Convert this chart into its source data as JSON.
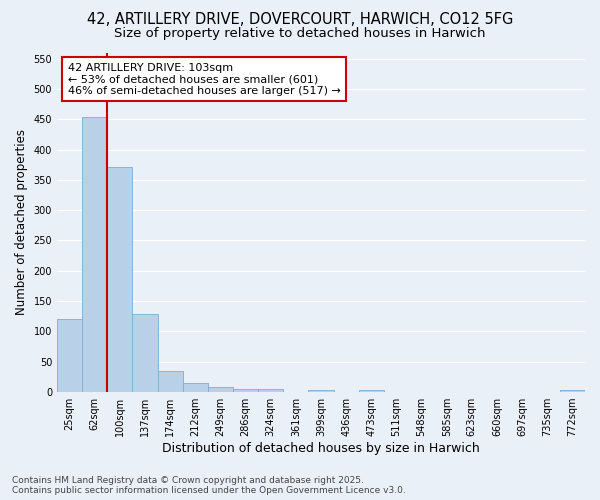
{
  "title_line1": "42, ARTILLERY DRIVE, DOVERCOURT, HARWICH, CO12 5FG",
  "title_line2": "Size of property relative to detached houses in Harwich",
  "xlabel": "Distribution of detached houses by size in Harwich",
  "ylabel": "Number of detached properties",
  "categories": [
    "25sqm",
    "62sqm",
    "100sqm",
    "137sqm",
    "174sqm",
    "212sqm",
    "249sqm",
    "286sqm",
    "324sqm",
    "361sqm",
    "399sqm",
    "436sqm",
    "473sqm",
    "511sqm",
    "548sqm",
    "585sqm",
    "623sqm",
    "660sqm",
    "697sqm",
    "735sqm",
    "772sqm"
  ],
  "values": [
    120,
    454,
    372,
    128,
    35,
    15,
    9,
    5,
    5,
    0,
    3,
    0,
    3,
    0,
    0,
    0,
    0,
    0,
    0,
    0,
    3
  ],
  "bar_color": "#b8d0e8",
  "bar_edge_color": "#7aadd4",
  "property_line_color": "#cc0000",
  "property_line_bar_index": 2,
  "annotation_text": "42 ARTILLERY DRIVE: 103sqm\n← 53% of detached houses are smaller (601)\n46% of semi-detached houses are larger (517) →",
  "annotation_box_edge_color": "#cc0000",
  "annotation_bg_color": "#ffffff",
  "annotation_text_color": "#000000",
  "ylim": [
    0,
    560
  ],
  "yticks": [
    0,
    50,
    100,
    150,
    200,
    250,
    300,
    350,
    400,
    450,
    500,
    550
  ],
  "bg_color": "#eaf0f8",
  "grid_color": "#ffffff",
  "footnote": "Contains HM Land Registry data © Crown copyright and database right 2025.\nContains public sector information licensed under the Open Government Licence v3.0.",
  "title_fontsize": 10.5,
  "subtitle_fontsize": 9.5,
  "tick_fontsize": 7,
  "xlabel_fontsize": 9,
  "ylabel_fontsize": 8.5,
  "annotation_fontsize": 8,
  "footnote_fontsize": 6.5
}
